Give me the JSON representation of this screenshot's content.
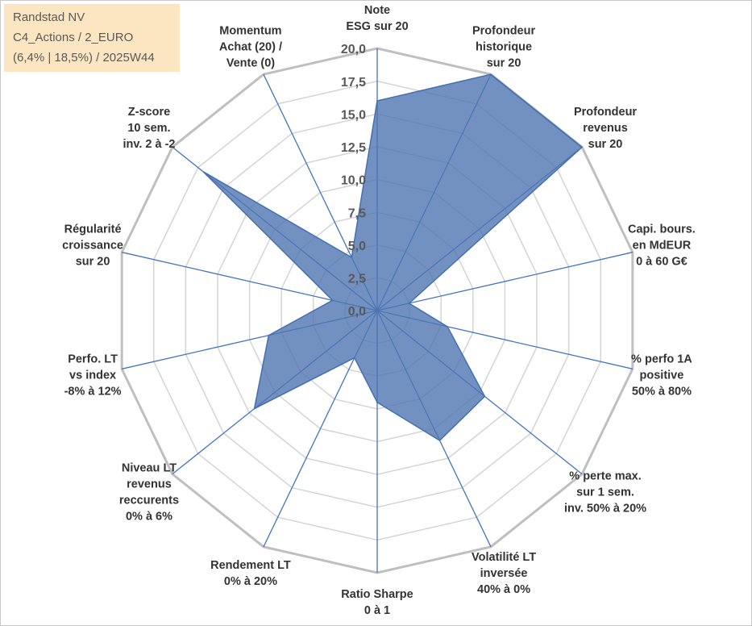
{
  "chart_data": {
    "type": "radar",
    "annotation": [
      "Randstad NV",
      "C4_Actions / 2_EURO",
      "(6,4% | 18,5%) / 2025W44"
    ],
    "categories": [
      [
        "Note",
        "ESG sur 20"
      ],
      [
        "Profondeur",
        "historique",
        "sur 20"
      ],
      [
        "Profondeur",
        "revenus",
        "sur 20"
      ],
      [
        "Capi. bours.",
        "en MdEUR",
        "0 à 60 G€"
      ],
      [
        "% perfo 1A",
        "positive",
        "50% à 80%"
      ],
      [
        "% perte max.",
        "sur 1 sem.",
        "inv. 50% à 20%"
      ],
      [
        "Volatilité LT",
        "inversée",
        "40% à 0%"
      ],
      [
        "Ratio Sharpe",
        "0 à 1"
      ],
      [
        "Rendement LT",
        "0% à 20%"
      ],
      [
        "Niveau LT",
        "revenus",
        "reccurents",
        "0% à 6%"
      ],
      [
        "Perfo. LT",
        "vs index",
        "-8% à 12%"
      ],
      [
        "Régularité",
        "croissance",
        "sur 20"
      ],
      [
        "Z-score",
        "10 sem.",
        "inv. 2 à -2"
      ],
      [
        "Momentum",
        "Achat (20) /",
        "Vente (0)"
      ]
    ],
    "values": [
      16,
      20,
      20,
      2.5,
      5.5,
      10.5,
      11,
      7,
      4,
      12,
      8.5,
      3.5,
      17,
      4.5
    ],
    "color": "#4f76b0",
    "ylim": [
      0,
      20
    ],
    "yticks": [
      {
        "value": 0,
        "label": "0,0"
      },
      {
        "value": 2.5,
        "label": "2,5"
      },
      {
        "value": 5,
        "label": "5,0"
      },
      {
        "value": 7.5,
        "label": "7,5"
      },
      {
        "value": 10,
        "label": "10,0"
      },
      {
        "value": 12.5,
        "label": "12,5"
      },
      {
        "value": 15,
        "label": "15,0"
      },
      {
        "value": 17.5,
        "label": "17,5"
      },
      {
        "value": 20,
        "label": "20,0"
      }
    ],
    "grid": true
  }
}
